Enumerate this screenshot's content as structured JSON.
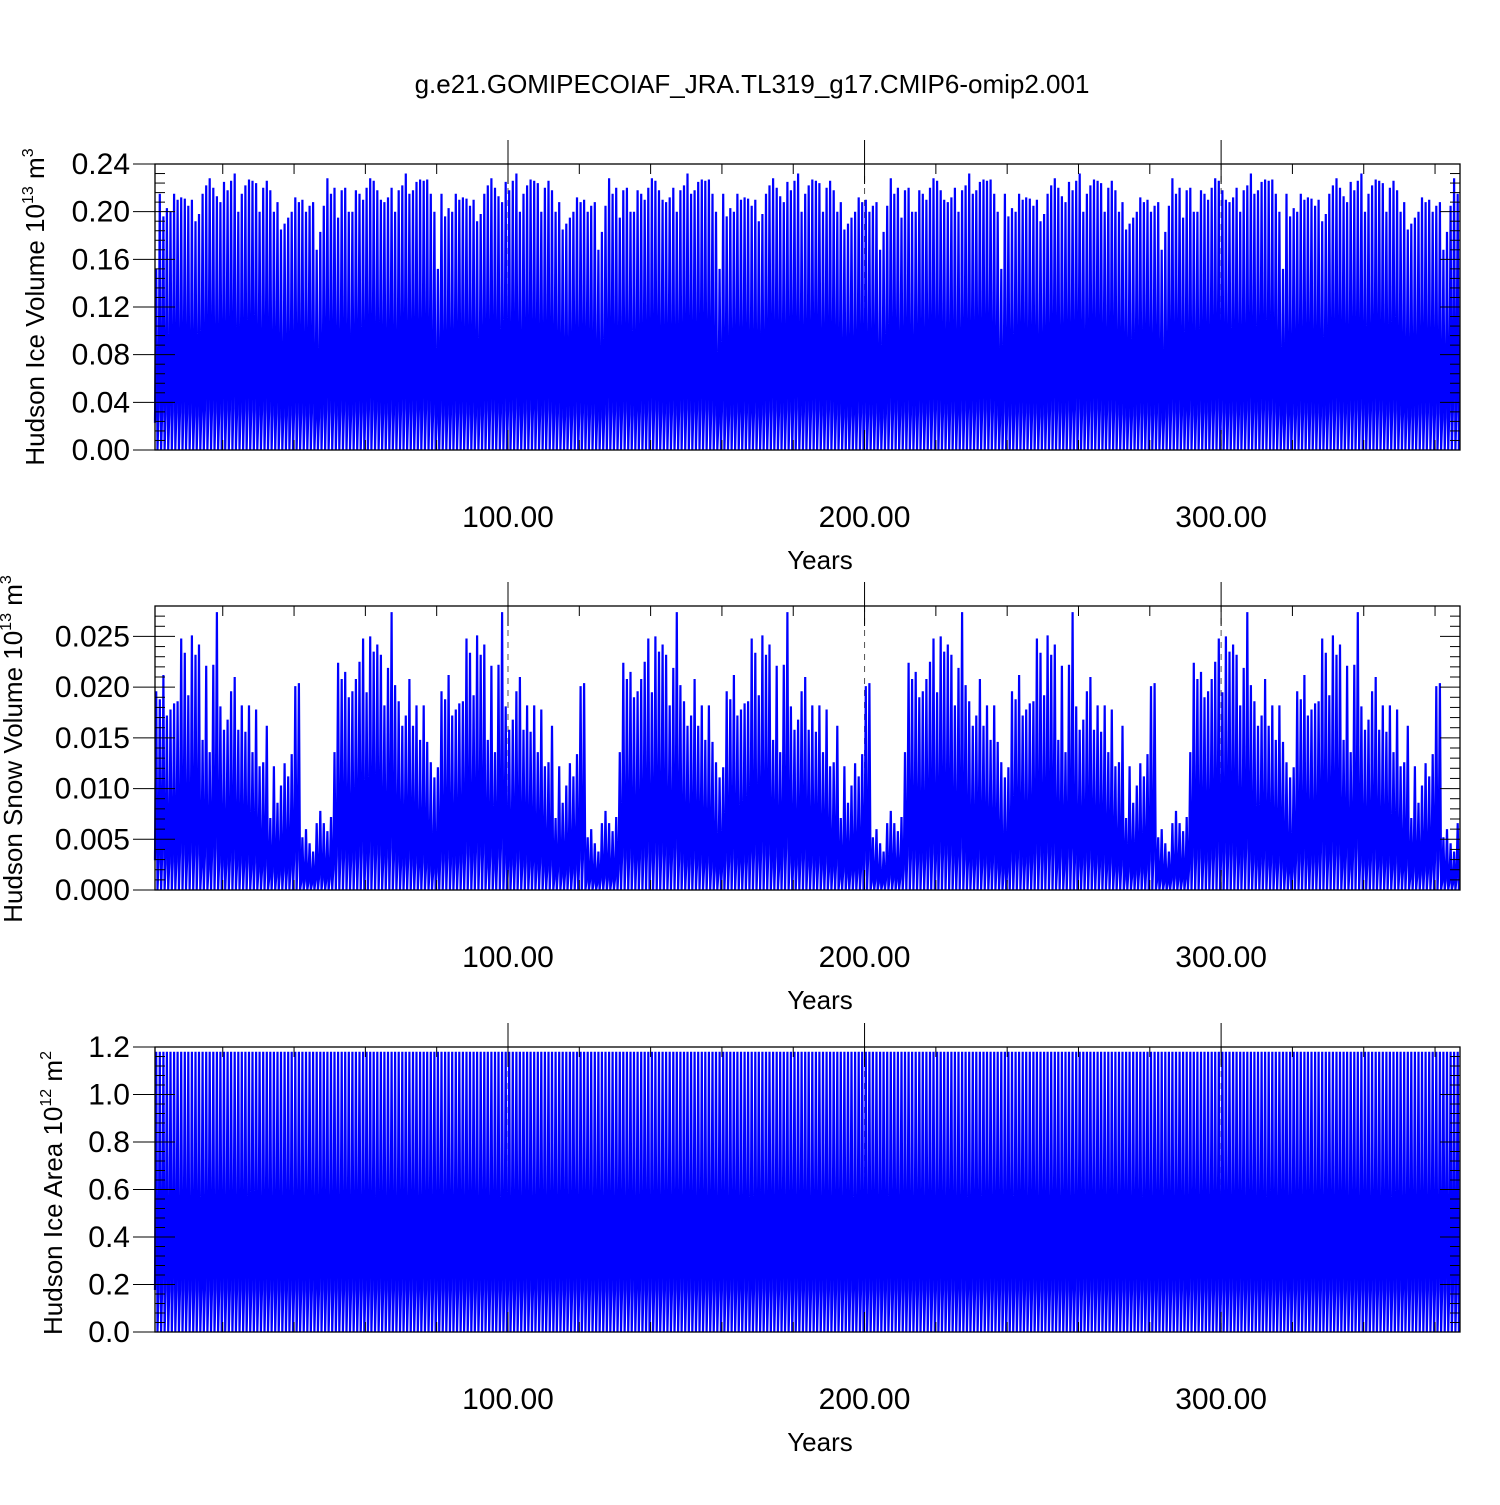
{
  "title": "g.e21.GOMIPECOIAF_JRA.TL319_g17.CMIP6-omip2.001",
  "line_color": "#0000ff",
  "chart_data": [
    {
      "type": "line",
      "ylabel": {
        "main": "Hudson Ice Volume 10",
        "exp": "13",
        "unit": "m",
        "unit_exp": "3"
      },
      "xlabel": "Years",
      "xlim": [
        1,
        367
      ],
      "ylim": [
        0,
        0.24
      ],
      "yticks": [
        0.0,
        0.04,
        0.08,
        0.12,
        0.16,
        0.2,
        0.24
      ],
      "ytick_labels": [
        "0.00",
        "0.04",
        "0.08",
        "0.12",
        "0.16",
        "0.20",
        "0.24"
      ],
      "xticks": [
        100,
        200,
        300
      ],
      "xtick_labels": [
        "100.00",
        "200.00",
        "300.00"
      ],
      "grid": "dashed vertical at major x ticks",
      "series": [
        {
          "values_note": "annual maxima, seasonal cycle to ~0 each year",
          "annual_max": [
            0.152,
            0.215,
            0.196,
            0.203,
            0.2,
            0.215,
            0.21,
            0.212,
            0.211,
            0.205,
            0.21,
            0.192,
            0.198,
            0.215,
            0.222,
            0.228,
            0.22,
            0.213,
            0.208,
            0.225,
            0.218,
            0.226,
            0.232,
            0.2,
            0.215,
            0.222,
            0.227,
            0.226,
            0.224,
            0.2,
            0.22,
            0.226,
            0.218,
            0.2,
            0.208,
            0.185,
            0.19,
            0.195,
            0.2,
            0.212,
            0.208,
            0.21,
            0.2,
            0.205,
            0.208,
            0.168,
            0.183,
            0.205,
            0.228,
            0.215,
            0.22,
            0.195,
            0.218,
            0.22,
            0.2,
            0.2,
            0.218,
            0.215,
            0.21,
            0.22,
            0.228,
            0.226,
            0.218,
            0.21,
            0.208,
            0.212,
            0.22,
            0.2,
            0.218,
            0.222,
            0.232,
            0.215,
            0.218,
            0.225,
            0.227,
            0.226,
            0.227,
            0.215,
            0.2
          ]
        }
      ]
    },
    {
      "type": "line",
      "ylabel": {
        "main": "Hudson Snow Volume 10",
        "exp": "13",
        "unit": "m",
        "unit_exp": "3"
      },
      "xlabel": "Years",
      "xlim": [
        1,
        367
      ],
      "ylim": [
        0,
        0.028
      ],
      "yticks": [
        0.0,
        0.005,
        0.01,
        0.015,
        0.02,
        0.025
      ],
      "ytick_labels": [
        "0.000",
        "0.005",
        "0.010",
        "0.015",
        "0.020",
        "0.025"
      ],
      "xticks": [
        100,
        200,
        300
      ],
      "xtick_labels": [
        "100.00",
        "200.00",
        "300.00"
      ],
      "grid": "dashed vertical at major x ticks",
      "series": [
        {
          "values_note": "annual maxima, seasonal cycle to ~0 each year",
          "annual_max": [
            0.0196,
            0.0188,
            0.0212,
            0.0172,
            0.0178,
            0.0184,
            0.0186,
            0.0248,
            0.0234,
            0.0192,
            0.0251,
            0.0232,
            0.0242,
            0.0148,
            0.0221,
            0.0136,
            0.0222,
            0.0274,
            0.0181,
            0.0158,
            0.0168,
            0.0196,
            0.021,
            0.0158,
            0.0182,
            0.0156,
            0.0182,
            0.0136,
            0.0178,
            0.0122,
            0.0126,
            0.0162,
            0.0071,
            0.0122,
            0.0086,
            0.0103,
            0.0125,
            0.0112,
            0.0134,
            0.0201,
            0.0204,
            0.0052,
            0.006,
            0.0046,
            0.0038,
            0.0066,
            0.0078,
            0.0066,
            0.0058,
            0.0072,
            0.0136,
            0.0224,
            0.0208,
            0.0215,
            0.019,
            0.0196,
            0.0208,
            0.0225,
            0.0248,
            0.0195,
            0.025,
            0.0235,
            0.0242,
            0.0232,
            0.0182,
            0.0219,
            0.0274,
            0.0202,
            0.0186,
            0.0162,
            0.0172,
            0.0208,
            0.0162,
            0.0182,
            0.0148,
            0.0182,
            0.0146,
            0.0126,
            0.0111,
            0.0121
          ]
        }
      ]
    },
    {
      "type": "line",
      "ylabel": {
        "main": "Hudson Ice Area 10",
        "exp": "12",
        "unit": "m",
        "unit_exp": "2"
      },
      "xlabel": "Years",
      "xlim": [
        1,
        367
      ],
      "ylim": [
        0,
        1.2
      ],
      "yticks": [
        0.0,
        0.2,
        0.4,
        0.6,
        0.8,
        1.0,
        1.2
      ],
      "ytick_labels": [
        "0.0",
        "0.2",
        "0.4",
        "0.6",
        "0.8",
        "1.0",
        "1.2"
      ],
      "xticks": [
        100,
        200,
        300
      ],
      "xtick_labels": [
        "100.00",
        "200.00",
        "300.00"
      ],
      "grid": "dashed vertical at major x ticks",
      "series": [
        {
          "values_note": "annual maxima, seasonal cycle to ~0 each year",
          "annual_max": [
            1.18
          ]
        }
      ]
    }
  ]
}
